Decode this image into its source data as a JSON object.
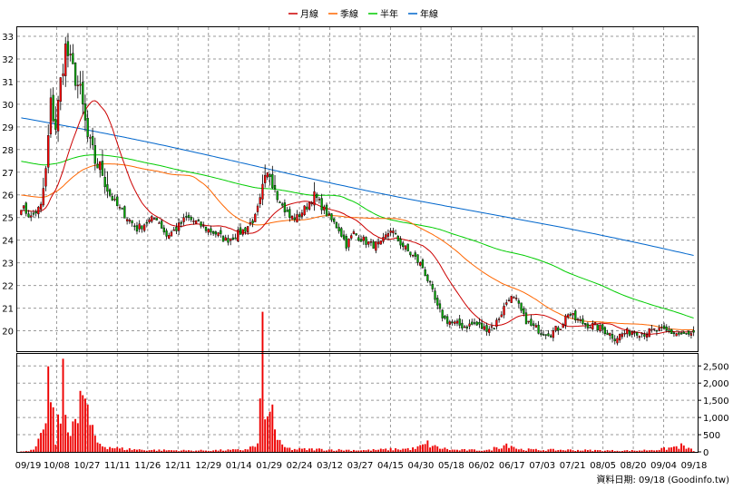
{
  "chart_data": {
    "type": "candlestick+line+bar",
    "legend": [
      {
        "name": "月線",
        "color": "#cc0000"
      },
      {
        "name": "季線",
        "color": "#ff6600"
      },
      {
        "name": "半年",
        "color": "#00cc00"
      },
      {
        "name": "年線",
        "color": "#0066cc"
      }
    ],
    "legend_placement": "top-center",
    "grid": true,
    "price_axis": {
      "ticks": [
        20,
        21,
        22,
        23,
        24,
        25,
        26,
        27,
        28,
        29,
        30,
        31,
        32,
        33
      ],
      "ylim": [
        19.1,
        33.4
      ]
    },
    "volume_axis": {
      "ticks": [
        "0",
        "500",
        "1,000",
        "1,500",
        "2,000",
        "2,500"
      ],
      "values": [
        0,
        500,
        1000,
        1500,
        2000,
        2500
      ],
      "ylim": [
        0,
        2850
      ]
    },
    "x_ticks": [
      "09/19",
      "10/08",
      "10/27",
      "11/11",
      "11/26",
      "12/11",
      "12/29",
      "01/14",
      "01/29",
      "02/24",
      "03/12",
      "03/27",
      "04/15",
      "04/30",
      "05/18",
      "06/02",
      "06/17",
      "07/03",
      "07/21",
      "08/05",
      "08/20",
      "09/04",
      "09/18"
    ],
    "close_anchors": [
      [
        0,
        25.5
      ],
      [
        4,
        25.0
      ],
      [
        8,
        25.5
      ],
      [
        10,
        27.0
      ],
      [
        12,
        30.0
      ],
      [
        14,
        29.0
      ],
      [
        16,
        31.0
      ],
      [
        18,
        32.5
      ],
      [
        21,
        31.5
      ],
      [
        24,
        30.5
      ],
      [
        27,
        28.5
      ],
      [
        30,
        27.5
      ],
      [
        33,
        27.0
      ],
      [
        36,
        26.0
      ],
      [
        39,
        25.5
      ],
      [
        43,
        25.0
      ],
      [
        47,
        24.5
      ],
      [
        51,
        24.8
      ],
      [
        55,
        25.0
      ],
      [
        59,
        24.2
      ],
      [
        63,
        24.5
      ],
      [
        67,
        25.0
      ],
      [
        71,
        24.8
      ],
      [
        75,
        24.5
      ],
      [
        79,
        24.3
      ],
      [
        83,
        24.0
      ],
      [
        87,
        24.2
      ],
      [
        91,
        24.5
      ],
      [
        95,
        25.0
      ],
      [
        99,
        26.5
      ],
      [
        101,
        27.0
      ],
      [
        103,
        26.5
      ],
      [
        106,
        25.5
      ],
      [
        109,
        25.0
      ],
      [
        112,
        25.0
      ],
      [
        116,
        25.5
      ],
      [
        119,
        26.0
      ],
      [
        122,
        25.5
      ],
      [
        125,
        25.0
      ],
      [
        129,
        24.5
      ],
      [
        132,
        23.8
      ],
      [
        135,
        24.3
      ],
      [
        139,
        24.0
      ],
      [
        142,
        23.8
      ],
      [
        146,
        23.8
      ],
      [
        150,
        24.5
      ],
      [
        153,
        24.0
      ],
      [
        157,
        23.5
      ],
      [
        160,
        23.2
      ],
      [
        163,
        22.8
      ],
      [
        166,
        22.0
      ],
      [
        169,
        21.0
      ],
      [
        172,
        20.5
      ],
      [
        176,
        20.3
      ],
      [
        180,
        20.2
      ],
      [
        184,
        20.3
      ],
      [
        188,
        20.1
      ],
      [
        192,
        20.2
      ],
      [
        195,
        20.8
      ],
      [
        198,
        21.5
      ],
      [
        201,
        21.3
      ],
      [
        204,
        20.6
      ],
      [
        207,
        20.2
      ],
      [
        211,
        20.0
      ],
      [
        215,
        19.9
      ],
      [
        219,
        20.2
      ],
      [
        222,
        20.8
      ],
      [
        225,
        20.5
      ],
      [
        229,
        20.3
      ],
      [
        233,
        20.2
      ],
      [
        237,
        20.0
      ],
      [
        241,
        19.7
      ],
      [
        245,
        19.9
      ],
      [
        249,
        20.0
      ],
      [
        253,
        19.9
      ],
      [
        257,
        20.0
      ],
      [
        261,
        20.0
      ],
      [
        265,
        19.9
      ],
      [
        269,
        19.8
      ],
      [
        273,
        19.8
      ]
    ],
    "volume_anchors": [
      [
        0,
        20
      ],
      [
        5,
        50
      ],
      [
        9,
        500
      ],
      [
        11,
        2100
      ],
      [
        14,
        300
      ],
      [
        17,
        1900
      ],
      [
        19,
        600
      ],
      [
        21,
        1300
      ],
      [
        23,
        700
      ],
      [
        25,
        2000
      ],
      [
        27,
        1100
      ],
      [
        29,
        550
      ],
      [
        31,
        300
      ],
      [
        33,
        200
      ],
      [
        36,
        150
      ],
      [
        40,
        100
      ],
      [
        45,
        80
      ],
      [
        50,
        60
      ],
      [
        60,
        50
      ],
      [
        70,
        40
      ],
      [
        80,
        50
      ],
      [
        90,
        60
      ],
      [
        96,
        200
      ],
      [
        98,
        2850
      ],
      [
        100,
        800
      ],
      [
        102,
        1300
      ],
      [
        104,
        400
      ],
      [
        106,
        150
      ],
      [
        110,
        80
      ],
      [
        120,
        80
      ],
      [
        130,
        60
      ],
      [
        140,
        50
      ],
      [
        150,
        80
      ],
      [
        160,
        100
      ],
      [
        165,
        250
      ],
      [
        168,
        150
      ],
      [
        175,
        60
      ],
      [
        190,
        50
      ],
      [
        195,
        200
      ],
      [
        198,
        250
      ],
      [
        202,
        80
      ],
      [
        210,
        60
      ],
      [
        220,
        60
      ],
      [
        230,
        50
      ],
      [
        240,
        40
      ],
      [
        250,
        40
      ],
      [
        260,
        80
      ],
      [
        268,
        180
      ],
      [
        273,
        40
      ]
    ],
    "start_vol_levels": [
      2,
      3,
      4,
      5,
      6,
      7
    ],
    "start_year": [
      29.4,
      28.9
    ],
    "start_half": [
      27.5
    ]
  }
}
